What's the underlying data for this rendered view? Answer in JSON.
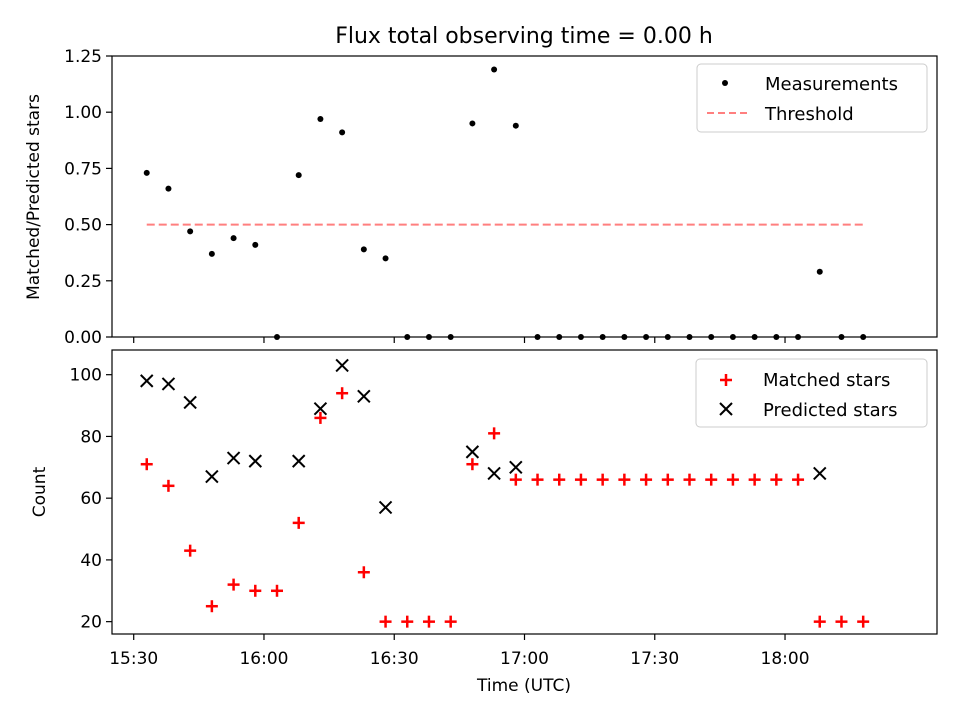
{
  "chart_data": [
    {
      "type": "scatter",
      "title": "Flux total observing time = 0.00 h",
      "ylabel": "Matched/Predicted stars",
      "xlabel": "",
      "xlim": [
        "15:25",
        "18:35"
      ],
      "ylim": [
        0,
        1.25
      ],
      "yticks": [
        0.0,
        0.25,
        0.5,
        0.75,
        1.0,
        1.25
      ],
      "ytick_labels": [
        "0.00",
        "0.25",
        "0.50",
        "0.75",
        "1.00",
        "1.25"
      ],
      "legend_position": "top-right",
      "series": [
        {
          "name": "Measurements",
          "marker": "dot",
          "color": "#000000",
          "x": [
            "15:33",
            "15:38",
            "15:43",
            "15:48",
            "15:53",
            "15:58",
            "16:03",
            "16:08",
            "16:13",
            "16:18",
            "16:23",
            "16:28",
            "16:33",
            "16:38",
            "16:43",
            "16:48",
            "16:53",
            "16:58",
            "17:03",
            "17:08",
            "17:13",
            "17:18",
            "17:23",
            "17:28",
            "17:33",
            "17:38",
            "17:43",
            "17:48",
            "17:53",
            "17:58",
            "18:03",
            "18:08",
            "18:13",
            "18:18"
          ],
          "y": [
            0.73,
            0.66,
            0.47,
            0.37,
            0.44,
            0.41,
            0.0,
            0.72,
            0.97,
            0.91,
            0.39,
            0.35,
            0.0,
            0.0,
            0.0,
            0.95,
            1.19,
            0.94,
            0.0,
            0.0,
            0.0,
            0.0,
            0.0,
            0.0,
            0.0,
            0.0,
            0.0,
            0.0,
            0.0,
            0.0,
            0.0,
            0.29,
            0.0,
            0.0
          ]
        },
        {
          "name": "Threshold",
          "marker": "dashed-line",
          "color": "#ff7f7f",
          "x": [
            "15:33",
            "18:18"
          ],
          "y": [
            0.5,
            0.5
          ]
        }
      ]
    },
    {
      "type": "scatter",
      "title": "",
      "ylabel": "Count",
      "xlabel": "Time (UTC)",
      "xlim": [
        "15:25",
        "18:35"
      ],
      "ylim": [
        16,
        108
      ],
      "yticks": [
        20,
        40,
        60,
        80,
        100
      ],
      "ytick_labels": [
        "20",
        "40",
        "60",
        "80",
        "100"
      ],
      "xticks": [
        "15:30",
        "16:00",
        "16:30",
        "17:00",
        "17:30",
        "18:00"
      ],
      "xtick_labels": [
        "15:30",
        "16:00",
        "16:30",
        "17:00",
        "17:30",
        "18:00"
      ],
      "legend_position": "top-right",
      "series": [
        {
          "name": "Matched stars",
          "marker": "plus",
          "color": "#ff0000",
          "x": [
            "15:33",
            "15:38",
            "15:43",
            "15:48",
            "15:53",
            "15:58",
            "16:03",
            "16:08",
            "16:13",
            "16:18",
            "16:23",
            "16:28",
            "16:33",
            "16:38",
            "16:43",
            "16:48",
            "16:53",
            "16:58",
            "17:03",
            "17:08",
            "17:13",
            "17:18",
            "17:23",
            "17:28",
            "17:33",
            "17:38",
            "17:43",
            "17:48",
            "17:53",
            "17:58",
            "18:03",
            "18:08",
            "18:13",
            "18:18"
          ],
          "y": [
            71,
            64,
            43,
            25,
            32,
            30,
            30,
            52,
            86,
            94,
            36,
            20,
            20,
            20,
            20,
            71,
            81,
            66,
            66,
            66,
            66,
            66,
            66,
            66,
            66,
            66,
            66,
            66,
            66,
            66,
            66,
            20,
            20,
            20
          ]
        },
        {
          "name": "Predicted stars",
          "marker": "x",
          "color": "#000000",
          "x": [
            "15:33",
            "15:38",
            "15:43",
            "15:48",
            "15:53",
            "15:58",
            "16:08",
            "16:13",
            "16:18",
            "16:23",
            "16:28",
            "16:48",
            "16:53",
            "16:58",
            "18:08"
          ],
          "y": [
            98,
            97,
            91,
            67,
            73,
            72,
            72,
            89,
            103,
            93,
            57,
            75,
            68,
            70,
            68
          ]
        }
      ]
    }
  ]
}
